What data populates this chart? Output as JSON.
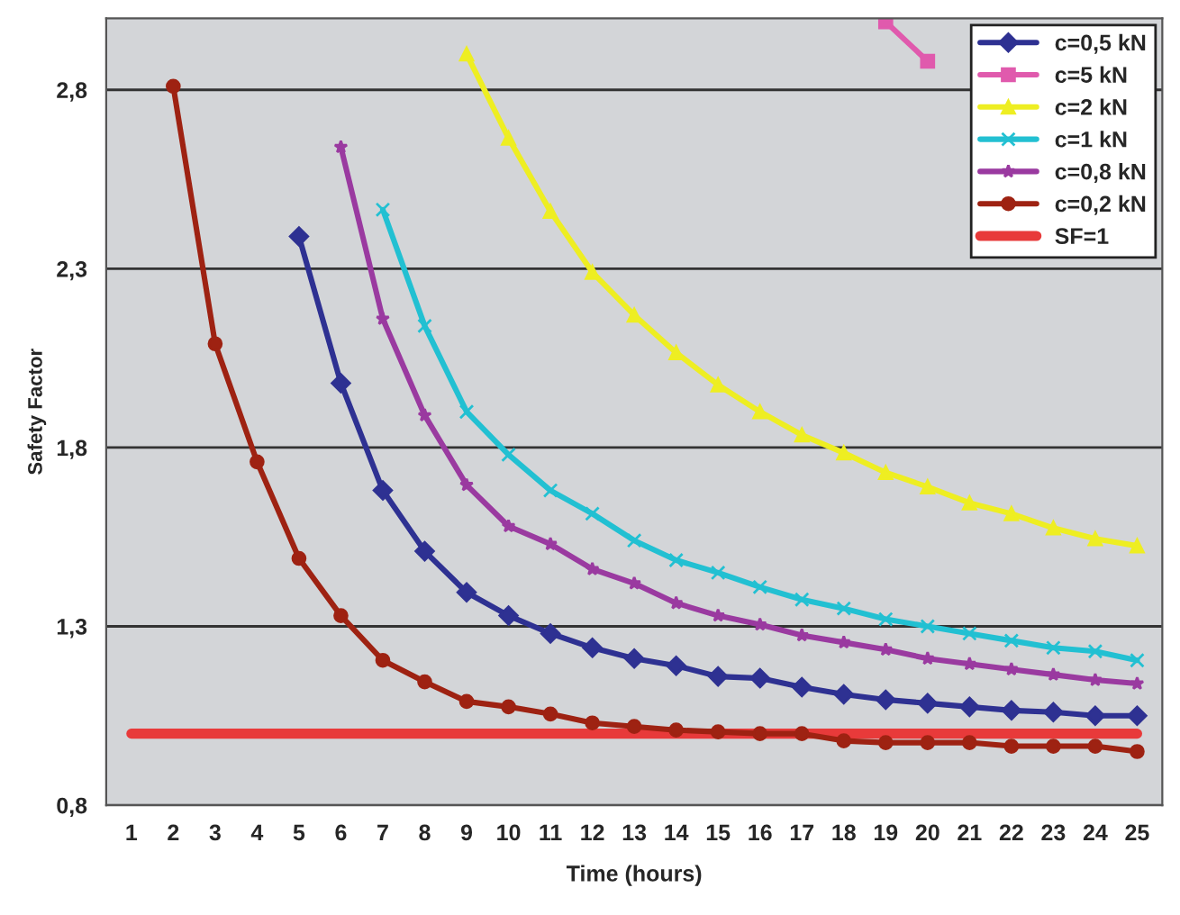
{
  "chart_data": {
    "type": "line",
    "xlabel": "Time (hours)",
    "ylabel": "Safety Factor",
    "categories": [
      "1",
      "2",
      "3",
      "4",
      "5",
      "6",
      "7",
      "8",
      "9",
      "10",
      "11",
      "12",
      "13",
      "14",
      "15",
      "16",
      "17",
      "18",
      "19",
      "20",
      "21",
      "22",
      "23",
      "24",
      "25"
    ],
    "ylim": [
      0.8,
      3.0
    ],
    "yticks": [
      {
        "value": 0.8,
        "label": "0,8"
      },
      {
        "value": 1.3,
        "label": "1,3"
      },
      {
        "value": 1.8,
        "label": "1,8"
      },
      {
        "value": 2.3,
        "label": "2,3"
      },
      {
        "value": 2.8,
        "label": "2,8"
      }
    ],
    "grid": "y",
    "legend": "top right",
    "series": [
      {
        "name": "c=0,5 kN",
        "color": "#2e3192",
        "marker": "diamond",
        "values": [
          null,
          null,
          null,
          null,
          2.39,
          1.98,
          1.68,
          1.51,
          1.395,
          1.33,
          1.28,
          1.24,
          1.21,
          1.19,
          1.16,
          1.155,
          1.13,
          1.11,
          1.095,
          1.085,
          1.075,
          1.065,
          1.06,
          1.05,
          1.05
        ]
      },
      {
        "name": "c=5 kN",
        "color": "#e05aad",
        "marker": "square",
        "values": [
          null,
          null,
          null,
          null,
          null,
          null,
          null,
          null,
          null,
          null,
          null,
          null,
          null,
          null,
          null,
          null,
          null,
          null,
          2.99,
          2.88,
          null,
          null,
          null,
          null,
          null
        ]
      },
      {
        "name": "c=2 kN",
        "color": "#eeee22",
        "marker": "triangle",
        "values": [
          null,
          null,
          null,
          null,
          null,
          null,
          null,
          null,
          2.9,
          2.665,
          2.46,
          2.29,
          2.17,
          2.065,
          1.975,
          1.9,
          1.835,
          1.785,
          1.73,
          1.69,
          1.645,
          1.615,
          1.575,
          1.545,
          1.525
        ]
      },
      {
        "name": "c=1 kN",
        "color": "#22c0d2",
        "marker": "cross",
        "values": [
          null,
          null,
          null,
          null,
          null,
          null,
          2.465,
          2.14,
          1.9,
          1.78,
          1.68,
          1.615,
          1.54,
          1.485,
          1.45,
          1.41,
          1.375,
          1.35,
          1.32,
          1.3,
          1.28,
          1.26,
          1.24,
          1.23,
          1.205
        ]
      },
      {
        "name": "c=0,8 kN",
        "color": "#9a3aa0",
        "marker": "star",
        "values": [
          null,
          null,
          null,
          null,
          null,
          2.64,
          2.16,
          1.89,
          1.695,
          1.58,
          1.53,
          1.46,
          1.42,
          1.365,
          1.33,
          1.305,
          1.275,
          1.255,
          1.235,
          1.21,
          1.195,
          1.18,
          1.165,
          1.15,
          1.14
        ]
      },
      {
        "name": "c=0,2 kN",
        "color": "#9e2212",
        "marker": "circle",
        "values": [
          null,
          2.81,
          2.09,
          1.76,
          1.49,
          1.33,
          1.205,
          1.145,
          1.09,
          1.075,
          1.055,
          1.03,
          1.02,
          1.01,
          1.005,
          1.0,
          1.0,
          0.98,
          0.975,
          0.975,
          0.975,
          0.965,
          0.965,
          0.965,
          0.95
        ]
      },
      {
        "name": "SF=1",
        "color": "#e83a3a",
        "marker": "none",
        "values": [
          1.0,
          1.0,
          1.0,
          1.0,
          1.0,
          1.0,
          1.0,
          1.0,
          1.0,
          1.0,
          1.0,
          1.0,
          1.0,
          1.0,
          1.0,
          1.0,
          1.0,
          1.0,
          1.0,
          1.0,
          1.0,
          1.0,
          1.0,
          1.0,
          1.0
        ]
      }
    ]
  }
}
